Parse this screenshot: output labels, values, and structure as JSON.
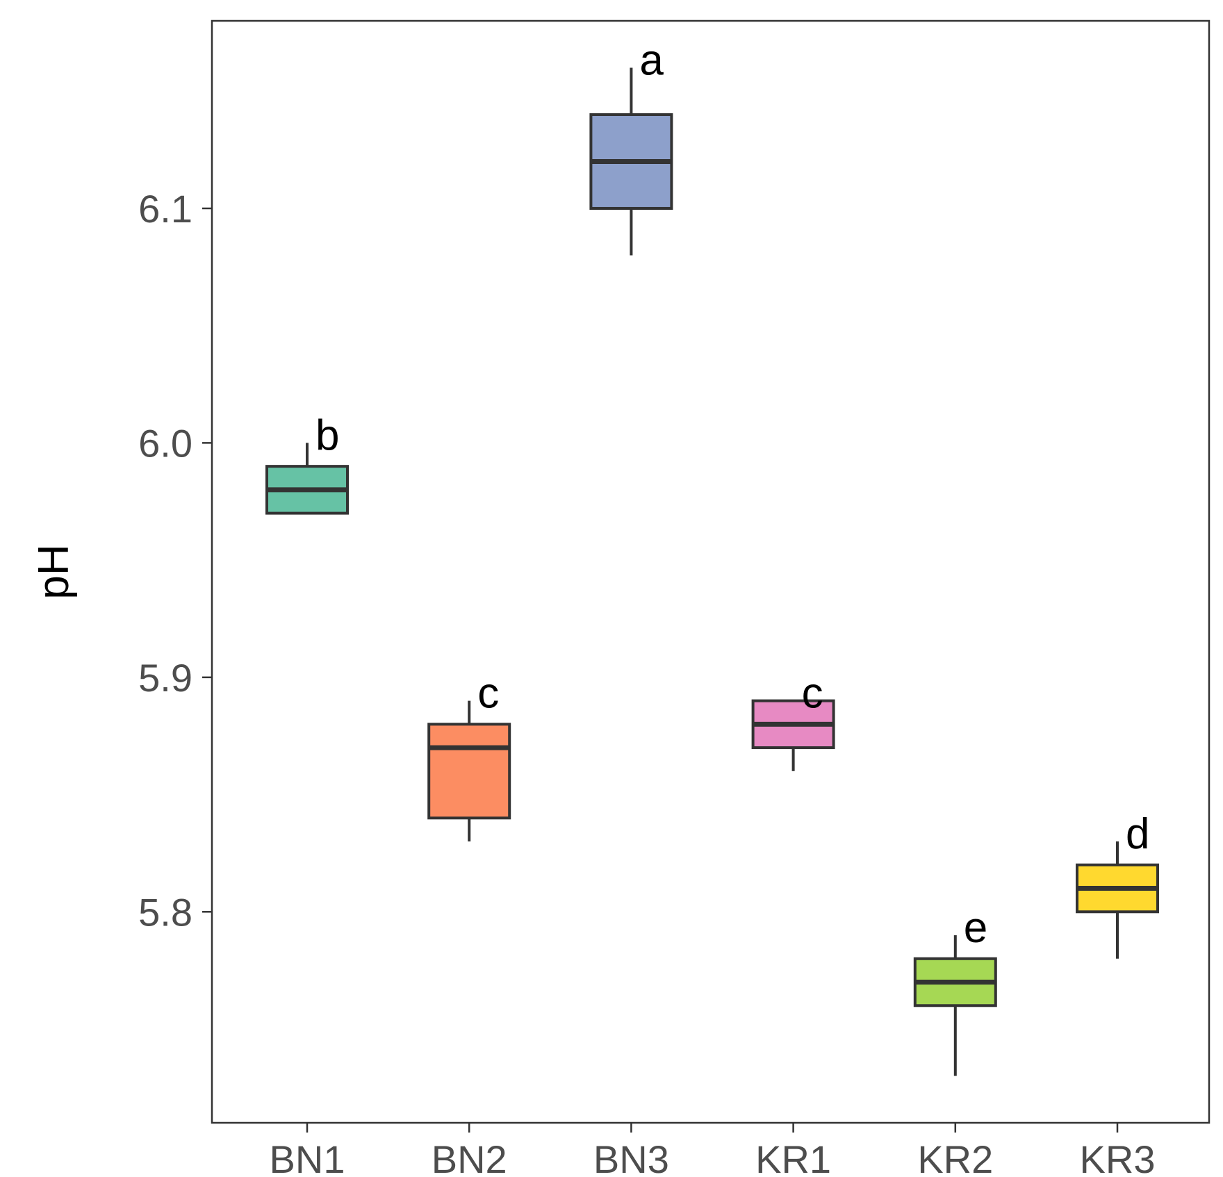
{
  "chart_data": {
    "type": "box",
    "ylabel": "pH",
    "xlabel": "",
    "ylim": [
      5.71,
      6.18
    ],
    "yticks": [
      "5.8",
      "5.9",
      "6.0",
      "6.1"
    ],
    "grid": false,
    "categories": [
      "BN1",
      "BN2",
      "BN3",
      "KR1",
      "KR2",
      "KR3"
    ],
    "boxes": [
      {
        "category": "BN1",
        "min": 5.97,
        "q1": 5.97,
        "median": 5.98,
        "q3": 5.99,
        "max": 6.0,
        "letter": "b",
        "color": "#66c2a5"
      },
      {
        "category": "BN2",
        "min": 5.83,
        "q1": 5.84,
        "median": 5.87,
        "q3": 5.88,
        "max": 5.89,
        "letter": "c",
        "color": "#fc8d62"
      },
      {
        "category": "BN3",
        "min": 6.08,
        "q1": 6.1,
        "median": 6.12,
        "q3": 6.14,
        "max": 6.16,
        "letter": "a",
        "color": "#8da0cb"
      },
      {
        "category": "KR1",
        "min": 5.86,
        "q1": 5.87,
        "median": 5.88,
        "q3": 5.89,
        "max": 5.89,
        "letter": "c",
        "color": "#e78ac3"
      },
      {
        "category": "KR2",
        "min": 5.73,
        "q1": 5.76,
        "median": 5.77,
        "q3": 5.78,
        "max": 5.79,
        "letter": "e",
        "color": "#a6d854"
      },
      {
        "category": "KR3",
        "min": 5.78,
        "q1": 5.8,
        "median": 5.81,
        "q3": 5.82,
        "max": 5.83,
        "letter": "d",
        "color": "#ffd92f"
      }
    ]
  }
}
